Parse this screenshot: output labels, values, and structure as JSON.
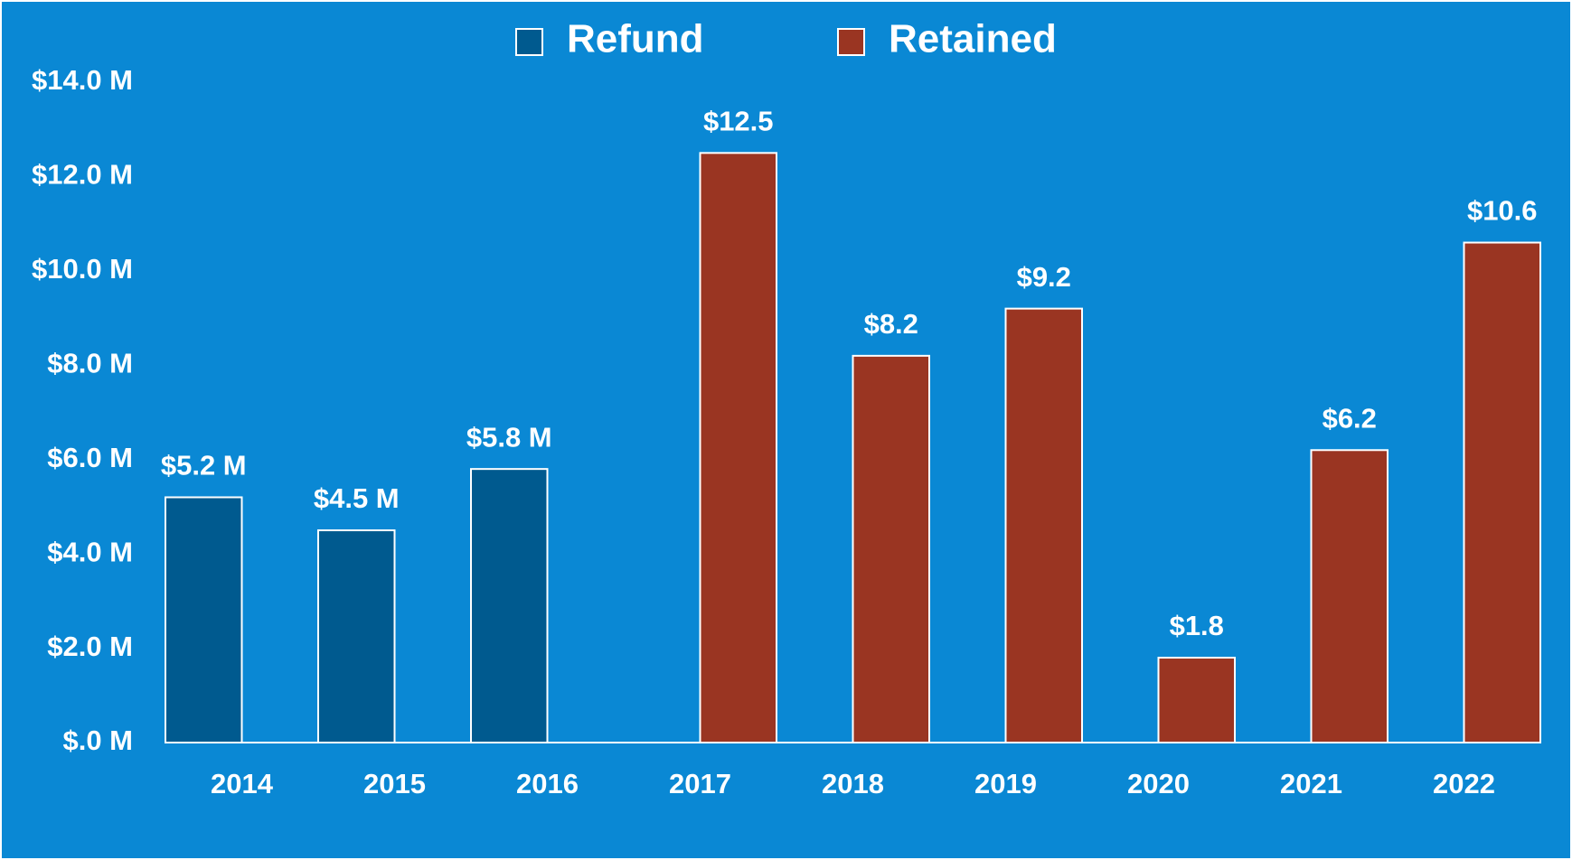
{
  "chart_data": {
    "type": "bar",
    "categories": [
      "2014",
      "2015",
      "2016",
      "2017",
      "2018",
      "2019",
      "2020",
      "2021",
      "2022"
    ],
    "series": [
      {
        "name": "Refund",
        "color": "#005a8f",
        "values": [
          5.2,
          4.5,
          5.8,
          null,
          null,
          null,
          null,
          null,
          null
        ],
        "value_labels": [
          "$5.2 M",
          "$4.5 M",
          "$5.8 M",
          null,
          null,
          null,
          null,
          null,
          null
        ]
      },
      {
        "name": "Retained",
        "color": "#9a3522",
        "values": [
          null,
          null,
          null,
          12.5,
          8.2,
          9.2,
          1.8,
          6.2,
          10.6
        ],
        "value_labels": [
          null,
          null,
          null,
          "$12.5",
          "$8.2",
          "$9.2",
          "$1.8",
          "$6.2",
          "$10.6"
        ]
      }
    ],
    "ylim": [
      0,
      14
    ],
    "yticks": [
      {
        "value": 0,
        "label": "$.0 M"
      },
      {
        "value": 2,
        "label": "$2.0 M"
      },
      {
        "value": 4,
        "label": "$4.0 M"
      },
      {
        "value": 6,
        "label": "$6.0 M"
      },
      {
        "value": 8,
        "label": "$8.0 M"
      },
      {
        "value": 10,
        "label": "$10.0 M"
      },
      {
        "value": 12,
        "label": "$12.0 M"
      },
      {
        "value": 14,
        "label": "$14.0 M"
      }
    ],
    "grid": false,
    "legend": "top"
  }
}
